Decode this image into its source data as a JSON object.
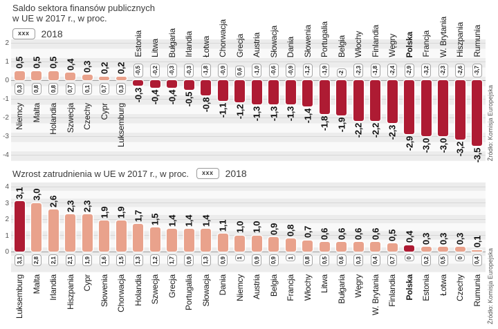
{
  "charts": [
    {
      "title_lines": [
        "Saldo sektora finansów publicznych",
        "w UE w 2017 r., w proc."
      ],
      "legend_swatch": "xxx",
      "legend_label": "2018",
      "source": "Źródło: Komisja Europejska",
      "chart_data": {
        "type": "bar",
        "categories": [
          "Niemcy",
          "Malta",
          "Holandia",
          "Szwecja",
          "Czechy",
          "Cypr",
          "Luksemburg",
          "Estonia",
          "Litwa",
          "Bułgaria",
          "Irlandia",
          "Łotwa",
          "Chorwacja",
          "Grecja",
          "Austria",
          "Słowacja",
          "Dania",
          "Słowenia",
          "Portugalia",
          "Belgia",
          "Włochy",
          "Finlandia",
          "Węgry",
          "Polska",
          "Francja",
          "W. Brytania",
          "Hiszpania",
          "Rumunia"
        ],
        "series": [
          {
            "name": "2017",
            "values": [
              0.5,
              0.5,
              0.5,
              0.4,
              0.3,
              0.2,
              0.2,
              -0.3,
              -0.4,
              -0.4,
              -0.5,
              -0.8,
              -1.1,
              -1.2,
              -1.3,
              -1.3,
              -1.3,
              -1.4,
              -1.8,
              -1.9,
              -2.2,
              -2.2,
              -2.3,
              -2.9,
              -3.0,
              -3.0,
              -3.2,
              -3.5
            ]
          },
          {
            "name": "2018",
            "values": [
              0.3,
              0.8,
              0.8,
              0.7,
              0.1,
              0.7,
              0.3,
              -0.5,
              -0.2,
              -0.3,
              -0.3,
              -1.8,
              -0.9,
              0.6,
              -1.0,
              -0.6,
              -0.9,
              -1.2,
              -1.9,
              -2,
              -2.3,
              -1.8,
              -2.4,
              -2.9,
              -3.2,
              -2.3,
              -2.6,
              -3.7
            ]
          }
        ],
        "labels_2017": [
          "0,5",
          "0,5",
          "0,5",
          "0,4",
          "0,3",
          "0,2",
          "0,2",
          "-0,3",
          "-0,4",
          "-0,4",
          "-0,5",
          "-0,8",
          "-1,1",
          "-1,2",
          "-1,3",
          "-1,3",
          "-1,3",
          "-1,4",
          "-1,8",
          "-1,9",
          "-2,2",
          "-2,2",
          "-2,3",
          "-2,9",
          "-3,0",
          "-3,0",
          "-3,2",
          "-3,5"
        ],
        "labels_2018": [
          "0,3",
          "0,8",
          "0,8",
          "0,7",
          "0,1",
          "0,7",
          "0,3",
          "-0,5",
          "-0,2",
          "-0,3",
          "-0,3",
          "-1,8",
          "-0,9",
          "0,6",
          "-1,0",
          "-0,6",
          "-0,9",
          "-1,2",
          "-1,9",
          "-2",
          "-2,3",
          "-1,8",
          "-2,4",
          "-2,9",
          "-3,2",
          "-2,3",
          "-2,6",
          "-3,7"
        ],
        "yticks": [
          2,
          1,
          0,
          -1,
          -2,
          -3,
          -4
        ],
        "ylim": [
          -4,
          2
        ],
        "bold_categories": [
          "Polska"
        ],
        "highlight_bars": []
      }
    },
    {
      "title": "Wzrost zatrudnienia w UE w 2017 r., w proc.",
      "legend_swatch": "xxx",
      "legend_label": "2018",
      "source": "Źródło: Komisja Europejska",
      "chart_data": {
        "type": "bar",
        "categories": [
          "Luksemburg",
          "Malta",
          "Irlandia",
          "Hiszpania",
          "Cypr",
          "Słowenia",
          "Chorwacja",
          "Holandia",
          "Szwecja",
          "Grecja",
          "Portugalia",
          "Słowacja",
          "Dania",
          "Niemcy",
          "Austria",
          "Belgia",
          "Francja",
          "Włochy",
          "Litwa",
          "Bułgaria",
          "Węgry",
          "W. Brytania",
          "Finlandia",
          "Polska",
          "Estonia",
          "Łotwa",
          "Czechy",
          "Rumunia"
        ],
        "series": [
          {
            "name": "2017",
            "values": [
              3.1,
              3.0,
              2.6,
              2.3,
              2.3,
              1.9,
              1.9,
              1.7,
              1.5,
              1.4,
              1.4,
              1.4,
              1.1,
              1.0,
              1.0,
              0.9,
              0.8,
              0.7,
              0.6,
              0.6,
              0.6,
              0.6,
              0.5,
              0.4,
              0.3,
              0.3,
              0.3,
              0.1
            ]
          },
          {
            "name": "2018",
            "values": [
              3.1,
              2.8,
              2.1,
              2.1,
              1.9,
              1.6,
              1.5,
              1.3,
              1.2,
              1.7,
              0.9,
              1.3,
              0.9,
              1,
              0.9,
              0.9,
              1,
              0.8,
              0.5,
              0.6,
              0.3,
              0.4,
              0.7,
              0,
              0.2,
              0.5,
              0,
              0.4
            ]
          }
        ],
        "labels_2017": [
          "3,1",
          "3,0",
          "2,6",
          "2,3",
          "2,3",
          "1,9",
          "1,9",
          "1,7",
          "1,5",
          "1,4",
          "1,4",
          "1,4",
          "1,1",
          "1,0",
          "1,0",
          "0,9",
          "0,8",
          "0,7",
          "0,6",
          "0,6",
          "0,6",
          "0,6",
          "0,5",
          "0,4",
          "0,3",
          "0,3",
          "0,3",
          "0,1"
        ],
        "labels_2018": [
          "3,1",
          "2,8",
          "2,1",
          "2,1",
          "1,9",
          "1,6",
          "1,5",
          "1,3",
          "1,2",
          "1,7",
          "0,9",
          "1,3",
          "0,9",
          "1",
          "0,9",
          "0,9",
          "1",
          "0,8",
          "0,5",
          "0,6",
          "0,3",
          "0,4",
          "0,7",
          "0",
          "0,2",
          "0,5",
          "0",
          "0,4"
        ],
        "yticks": [
          4,
          3,
          2,
          1,
          0
        ],
        "ylim": [
          0,
          4
        ],
        "bold_categories": [
          "Polska"
        ],
        "highlight_bars": [
          "Luksemburg",
          "Polska"
        ]
      }
    }
  ],
  "colors": {
    "bar_positive": "#e9a28c",
    "bar_negative": "#ae1b33",
    "bar_highlight": "#ae1b33",
    "stripe": "#ececec",
    "box_border": "#a3a3a3"
  }
}
